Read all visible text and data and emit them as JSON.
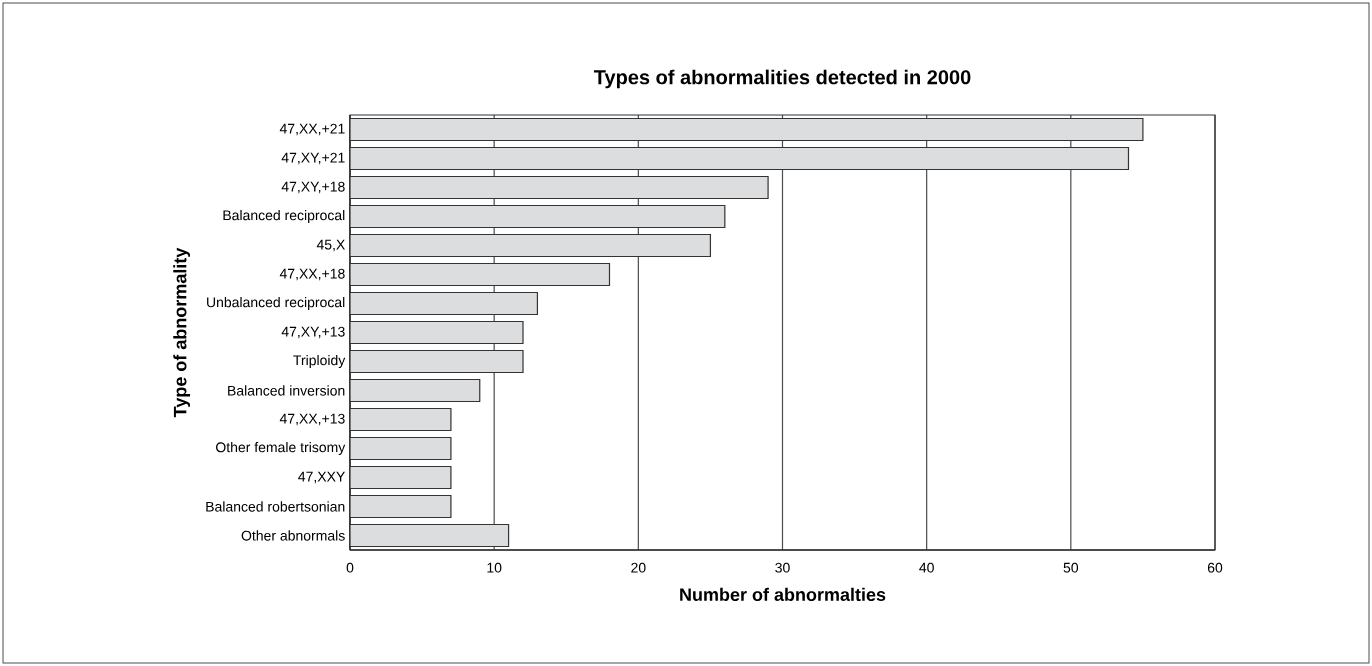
{
  "chart_data": {
    "type": "bar",
    "orientation": "horizontal",
    "title": "Types of abnormalities detected in 2000",
    "xlabel": "Number of abnormalties",
    "ylabel": "Type of abnormality",
    "categories": [
      "47,XX,+21",
      "47,XY,+21",
      "47,XY,+18",
      "Balanced reciprocal",
      "45,X",
      "47,XX,+18",
      "Unbalanced reciprocal",
      "47,XY,+13",
      "Triploidy",
      "Balanced inversion",
      "47,XX,+13",
      "Other female trisomy",
      "47,XXY",
      "Balanced robertsonian",
      "Other abnormals"
    ],
    "values": [
      55,
      54,
      29,
      26,
      25,
      18,
      13,
      12,
      12,
      9,
      7,
      7,
      7,
      7,
      11
    ],
    "color": "#dcdddf",
    "xlim": [
      0,
      60
    ],
    "xticks": [
      0,
      10,
      20,
      30,
      40,
      50,
      60
    ],
    "grid": "x"
  }
}
